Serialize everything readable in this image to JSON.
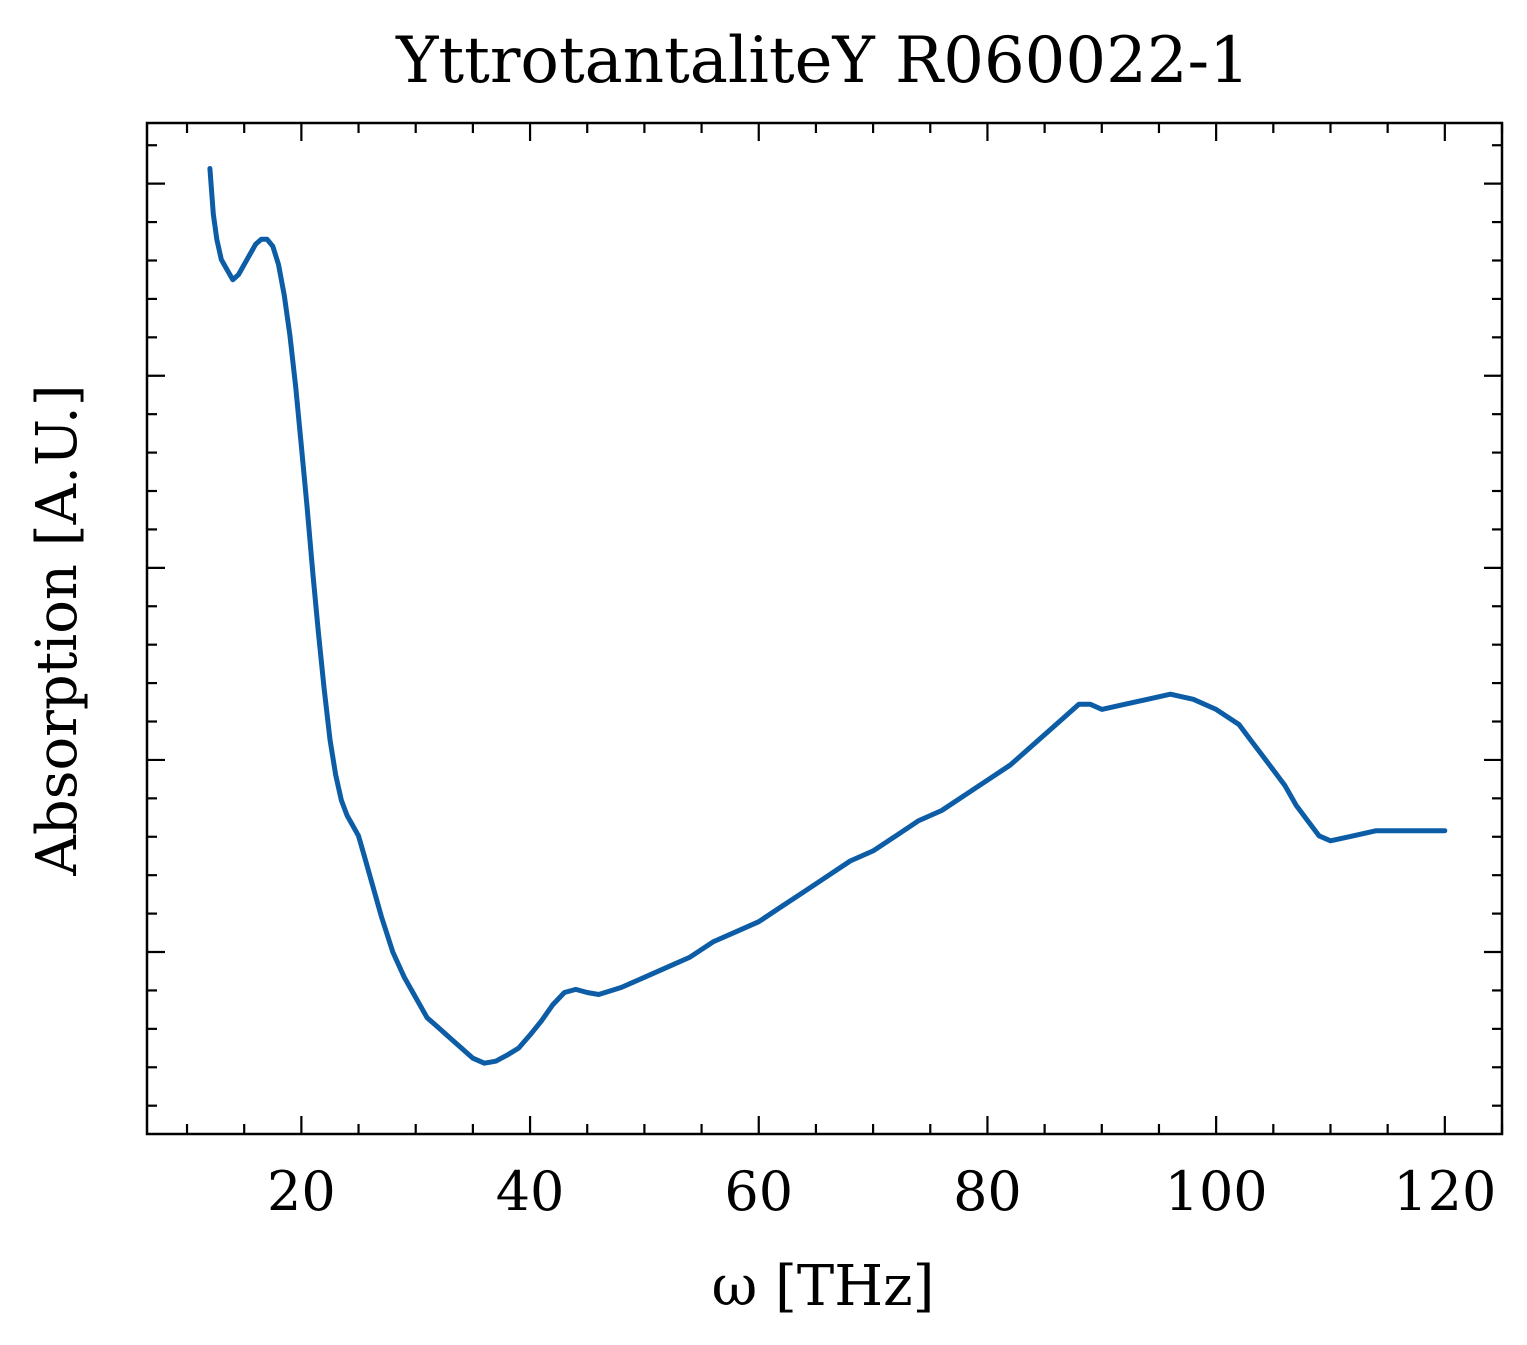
{
  "chart_data": {
    "type": "line",
    "title": "YttrotantaliteY R060022-1",
    "xlabel": "ω [THz]",
    "ylabel": "Absorption [A.U.]",
    "xlim": [
      6.5,
      125
    ],
    "ylim": [
      0.0,
      1.0
    ],
    "xticks": [
      20,
      40,
      60,
      80,
      100,
      120
    ],
    "xtick_labels": [
      "20",
      "40",
      "60",
      "80",
      "100",
      "120"
    ],
    "yticks": [
      0.18,
      0.37,
      0.555,
      0.745,
      0.93
    ],
    "ytick_labels_shown": false,
    "grid": false,
    "legend": "none",
    "line_color": "#0c5da5",
    "series": [
      {
        "x": [
          12.0,
          12.3,
          12.6,
          13.0,
          13.5,
          14.0,
          14.5,
          15.0,
          15.5,
          16.0,
          16.5,
          17.0,
          17.5,
          18.0,
          18.5,
          19.0,
          19.5,
          20.0,
          20.5,
          21.0,
          21.5,
          22.0,
          22.5,
          23.0,
          23.5,
          24.0,
          24.5,
          25.0,
          25.5,
          26.0,
          27.0,
          28.0,
          29.0,
          30.0,
          31.0,
          32.0,
          33.0,
          34.0,
          35.0,
          36.0,
          37.0,
          38.0,
          39.0,
          40.0,
          41.0,
          42.0,
          43.0,
          44.0,
          45.0,
          46.0,
          48.0,
          50.0,
          52.0,
          54.0,
          56.0,
          58.0,
          60.0,
          62.0,
          64.0,
          66.0,
          68.0,
          70.0,
          72.0,
          74.0,
          76.0,
          78.0,
          80.0,
          82.0,
          84.0,
          86.0,
          87.0,
          88.0,
          89.0,
          90.0,
          92.0,
          94.0,
          96.0,
          98.0,
          100.0,
          102.0,
          103.0,
          104.0,
          105.0,
          106.0,
          107.0,
          108.0,
          109.0,
          110.0,
          112.0,
          114.0,
          116.0,
          118.0,
          120.0
        ],
        "y": [
          0.955,
          0.91,
          0.885,
          0.865,
          0.855,
          0.845,
          0.85,
          0.86,
          0.87,
          0.88,
          0.885,
          0.885,
          0.878,
          0.86,
          0.83,
          0.79,
          0.74,
          0.68,
          0.62,
          0.555,
          0.495,
          0.44,
          0.39,
          0.355,
          0.33,
          0.315,
          0.305,
          0.295,
          0.275,
          0.255,
          0.215,
          0.18,
          0.155,
          0.135,
          0.115,
          0.105,
          0.095,
          0.085,
          0.075,
          0.07,
          0.072,
          0.078,
          0.085,
          0.098,
          0.112,
          0.128,
          0.14,
          0.143,
          0.14,
          0.138,
          0.145,
          0.155,
          0.165,
          0.175,
          0.19,
          0.2,
          0.21,
          0.225,
          0.24,
          0.255,
          0.27,
          0.28,
          0.295,
          0.31,
          0.32,
          0.335,
          0.35,
          0.365,
          0.385,
          0.405,
          0.415,
          0.425,
          0.425,
          0.42,
          0.425,
          0.43,
          0.435,
          0.43,
          0.42,
          0.405,
          0.39,
          0.375,
          0.36,
          0.345,
          0.325,
          0.31,
          0.295,
          0.29,
          0.295,
          0.3,
          0.3,
          0.3,
          0.3
        ]
      }
    ]
  }
}
